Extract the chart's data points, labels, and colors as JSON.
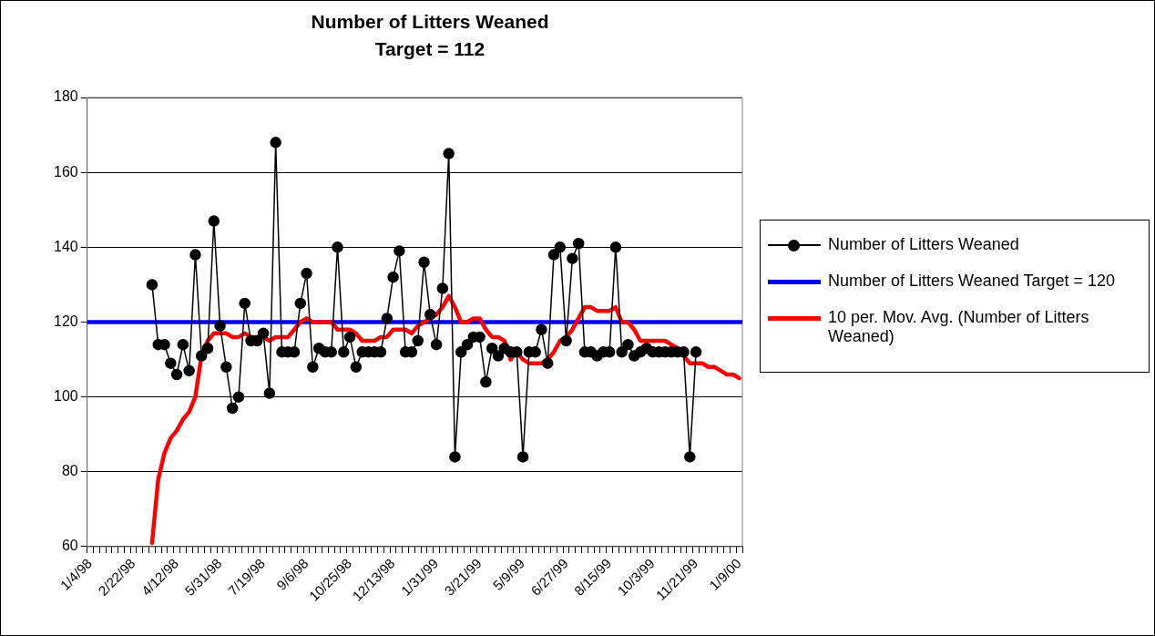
{
  "chart_data": {
    "type": "line",
    "title": "Number of Litters Weaned",
    "subtitle": "Target = 112",
    "categories": [
      "1/4/98",
      null,
      null,
      null,
      null,
      null,
      null,
      "2/22/98",
      null,
      null,
      null,
      null,
      null,
      null,
      "4/12/98",
      null,
      null,
      null,
      null,
      null,
      null,
      "5/31/98",
      null,
      null,
      null,
      null,
      null,
      null,
      "7/19/98",
      null,
      null,
      null,
      null,
      null,
      null,
      "9/6/98",
      null,
      null,
      null,
      null,
      null,
      null,
      "10/25/98",
      null,
      null,
      null,
      null,
      null,
      null,
      "12/13/98",
      null,
      null,
      null,
      null,
      null,
      null,
      "1/31/99",
      null,
      null,
      null,
      null,
      null,
      null,
      "3/21/99",
      null,
      null,
      null,
      null,
      null,
      null,
      "5/9/99",
      null,
      null,
      null,
      null,
      null,
      null,
      "6/27/99",
      null,
      null,
      null,
      null,
      null,
      null,
      "8/15/99",
      null,
      null,
      null,
      null,
      null,
      null,
      "10/3/99",
      null,
      null,
      null,
      null,
      null,
      null,
      "11/21/99",
      null,
      null,
      null,
      null,
      null,
      null,
      "1/9/00"
    ],
    "series": [
      {
        "name": "Number of Litters Weaned",
        "color": "#000000",
        "marker": "circle",
        "values": [
          null,
          null,
          null,
          null,
          null,
          null,
          null,
          null,
          null,
          null,
          130,
          114,
          114,
          109,
          106,
          114,
          107,
          138,
          111,
          113,
          147,
          119,
          108,
          97,
          100,
          125,
          115,
          115,
          117,
          101,
          168,
          112,
          112,
          112,
          125,
          133,
          108,
          113,
          112,
          112,
          140,
          112,
          116,
          108,
          112,
          112,
          112,
          112,
          121,
          132,
          139,
          112,
          112,
          115,
          136,
          122,
          114,
          129,
          165,
          84,
          112,
          114,
          116,
          116,
          104,
          113,
          111,
          113,
          112,
          112,
          84,
          112,
          112,
          118,
          109,
          138,
          140,
          115,
          137,
          141,
          112,
          112,
          111,
          112,
          112,
          140,
          112,
          114,
          111,
          112,
          113,
          112,
          112,
          112,
          112,
          112,
          112,
          84,
          112,
          null,
          null,
          null,
          null,
          null,
          null,
          null
        ]
      },
      {
        "name": "10 per. Mov. Avg. (Number of Litters Weaned)",
        "color": "#ff0000",
        "marker": "none",
        "values": [
          null,
          null,
          null,
          null,
          null,
          null,
          null,
          null,
          null,
          null,
          61,
          78,
          85,
          89,
          91,
          94,
          96,
          100,
          111,
          115,
          117,
          117,
          117,
          116,
          116,
          117,
          116,
          116,
          116,
          115,
          116,
          116,
          116,
          118,
          120,
          121,
          120,
          120,
          120,
          120,
          118,
          118,
          118,
          117,
          115,
          115,
          115,
          116,
          116,
          118,
          118,
          118,
          117,
          119,
          120,
          121,
          122,
          124,
          127,
          124,
          120,
          120,
          121,
          121,
          118,
          116,
          116,
          115,
          110,
          112,
          110,
          109,
          109,
          109,
          110,
          112,
          115,
          116,
          118,
          121,
          124,
          124,
          123,
          123,
          123,
          124,
          120,
          120,
          118,
          115,
          115,
          115,
          115,
          115,
          114,
          113,
          111,
          109,
          109,
          109,
          108,
          108,
          107,
          106,
          106,
          105
        ]
      }
    ],
    "ref_lines": [
      {
        "axis": "y",
        "value": 120,
        "label": "Number of Litters Weaned Target = 120",
        "color": "#0000ff"
      }
    ],
    "ylim": [
      60,
      180
    ],
    "yticks": [
      60,
      80,
      100,
      120,
      140,
      160,
      180
    ],
    "grid": "y",
    "legend": "right"
  }
}
